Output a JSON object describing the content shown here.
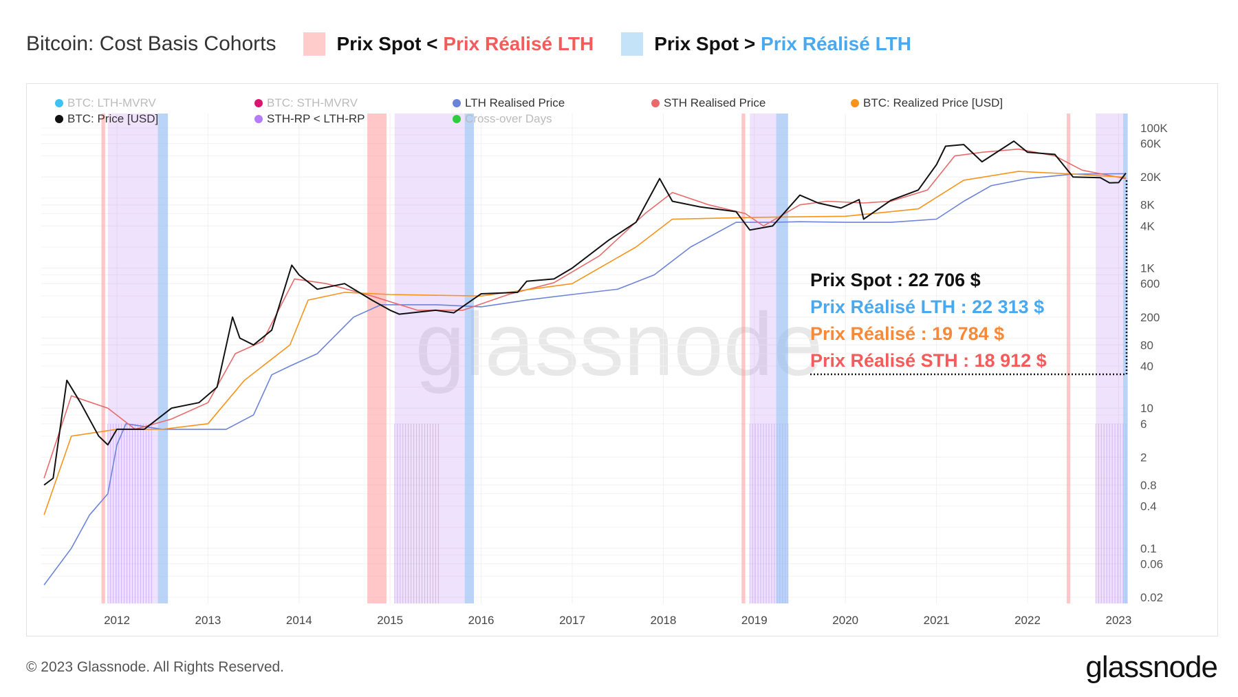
{
  "header": {
    "title": "Bitcoin: Cost Basis Cohorts",
    "legend_red": {
      "prefix": "Prix Spot < ",
      "suffix": "Prix Réalisé LTH",
      "swatch": "#ffcccc",
      "color": "#f45b5b"
    },
    "legend_blue": {
      "prefix": "Prix Spot > ",
      "suffix": "Prix Réalisé LTH",
      "swatch": "#c5e3f8",
      "color": "#4aa8ee"
    }
  },
  "legend": [
    {
      "label": "BTC: LTH-MVRV",
      "color": "#3fc1f5",
      "active": false
    },
    {
      "label": "BTC: STH-MVRV",
      "color": "#d6166f",
      "active": false
    },
    {
      "label": "LTH Realised Price",
      "color": "#6b83d9",
      "active": true
    },
    {
      "label": "STH Realised Price",
      "color": "#e86a6a",
      "active": true
    },
    {
      "label": "BTC: Realized Price [USD]",
      "color": "#f7931a",
      "active": true
    },
    {
      "label": "BTC: Price [USD]",
      "color": "#111111",
      "active": true
    },
    {
      "label": "STH-RP < LTH-RP",
      "color": "#b57cf7",
      "active": true
    },
    {
      "label": "Cross-over Days",
      "color": "#2ecc40",
      "active": false
    }
  ],
  "annotations": {
    "spot": {
      "text": "Prix Spot : 22 706 $",
      "color": "#111111"
    },
    "lth": {
      "text": "Prix Réalisé LTH : 22 313 $",
      "color": "#4aa8ee"
    },
    "rp": {
      "text": "Prix Réalisé : 19 784 $",
      "color": "#f7893a"
    },
    "sth": {
      "text": "Prix Réalisé STH : 18 912 $",
      "color": "#f45b5b"
    }
  },
  "watermark": "glassnode",
  "footer": {
    "copyright": "© 2023 Glassnode. All Rights Reserved.",
    "logo": "glassnode"
  },
  "chart_data": {
    "type": "line",
    "title": "Bitcoin: Cost Basis Cohorts",
    "yscale": "log",
    "ylim": [
      0.015,
      150000
    ],
    "xlim": [
      2011.2,
      2023.12
    ],
    "x_ticks": [
      "2012",
      "2013",
      "2014",
      "2015",
      "2016",
      "2017",
      "2018",
      "2019",
      "2020",
      "2021",
      "2022",
      "2023"
    ],
    "y_ticks": [
      {
        "v": 100000,
        "l": "100K"
      },
      {
        "v": 60000,
        "l": "60K"
      },
      {
        "v": 20000,
        "l": "20K"
      },
      {
        "v": 8000,
        "l": "8K"
      },
      {
        "v": 4000,
        "l": "4K"
      },
      {
        "v": 1000,
        "l": "1K"
      },
      {
        "v": 600,
        "l": "600"
      },
      {
        "v": 200,
        "l": "200"
      },
      {
        "v": 80,
        "l": "80"
      },
      {
        "v": 40,
        "l": "40"
      },
      {
        "v": 10,
        "l": "10"
      },
      {
        "v": 6,
        "l": "6"
      },
      {
        "v": 2,
        "l": "2"
      },
      {
        "v": 0.8,
        "l": "0.8"
      },
      {
        "v": 0.4,
        "l": "0.4"
      },
      {
        "v": 0.1,
        "l": "0.1"
      },
      {
        "v": 0.06,
        "l": "0.06"
      },
      {
        "v": 0.02,
        "l": "0.02"
      }
    ],
    "grid": true,
    "bands": {
      "spot_below_lth": [
        [
          2011.83,
          2011.87
        ],
        [
          2014.75,
          2014.96
        ],
        [
          2018.86,
          2018.9
        ],
        [
          2022.43,
          2022.47
        ]
      ],
      "spot_above_lth": [
        [
          2012.45,
          2012.56
        ],
        [
          2015.82,
          2015.92
        ],
        [
          2019.24,
          2019.37
        ],
        [
          2023.05,
          2023.1
        ]
      ],
      "sth_below_lth": [
        [
          2011.9,
          2012.56
        ],
        [
          2015.05,
          2015.92
        ],
        [
          2018.95,
          2019.37
        ],
        [
          2022.75,
          2023.1
        ]
      ]
    },
    "series": [
      {
        "name": "LTH Realised Price",
        "color": "#6b83d9",
        "points": [
          [
            2011.2,
            0.03
          ],
          [
            2011.5,
            0.1
          ],
          [
            2011.7,
            0.3
          ],
          [
            2011.9,
            0.6
          ],
          [
            2012.0,
            3
          ],
          [
            2012.1,
            6
          ],
          [
            2012.5,
            5
          ],
          [
            2013.0,
            5
          ],
          [
            2013.2,
            5
          ],
          [
            2013.5,
            8
          ],
          [
            2013.7,
            30
          ],
          [
            2013.9,
            40
          ],
          [
            2014.2,
            60
          ],
          [
            2014.6,
            200
          ],
          [
            2014.9,
            300
          ],
          [
            2015.5,
            300
          ],
          [
            2016.0,
            280
          ],
          [
            2016.5,
            350
          ],
          [
            2017.0,
            420
          ],
          [
            2017.5,
            500
          ],
          [
            2017.9,
            800
          ],
          [
            2018.3,
            2000
          ],
          [
            2018.8,
            4500
          ],
          [
            2019.2,
            4500
          ],
          [
            2019.5,
            4600
          ],
          [
            2020.0,
            4500
          ],
          [
            2020.5,
            4500
          ],
          [
            2021.0,
            5000
          ],
          [
            2021.3,
            9000
          ],
          [
            2021.6,
            15000
          ],
          [
            2022.0,
            19000
          ],
          [
            2022.5,
            22000
          ],
          [
            2023.08,
            22313
          ]
        ]
      },
      {
        "name": "STH Realised Price",
        "color": "#e86a6a",
        "points": [
          [
            2011.2,
            1
          ],
          [
            2011.5,
            15
          ],
          [
            2011.9,
            10
          ],
          [
            2012.2,
            5
          ],
          [
            2012.6,
            7
          ],
          [
            2013.0,
            12
          ],
          [
            2013.3,
            60
          ],
          [
            2013.6,
            90
          ],
          [
            2013.95,
            700
          ],
          [
            2014.3,
            600
          ],
          [
            2014.8,
            400
          ],
          [
            2015.3,
            250
          ],
          [
            2015.8,
            250
          ],
          [
            2016.3,
            420
          ],
          [
            2016.8,
            620
          ],
          [
            2017.3,
            1500
          ],
          [
            2017.8,
            6000
          ],
          [
            2018.1,
            12000
          ],
          [
            2018.5,
            8000
          ],
          [
            2018.9,
            6000
          ],
          [
            2019.1,
            4000
          ],
          [
            2019.5,
            8000
          ],
          [
            2019.8,
            9000
          ],
          [
            2020.2,
            8500
          ],
          [
            2020.5,
            9000
          ],
          [
            2020.9,
            13000
          ],
          [
            2021.2,
            40000
          ],
          [
            2021.5,
            45000
          ],
          [
            2021.9,
            50000
          ],
          [
            2022.3,
            40000
          ],
          [
            2022.6,
            25000
          ],
          [
            2023.08,
            18912
          ]
        ]
      },
      {
        "name": "BTC: Realized Price [USD]",
        "color": "#f7931a",
        "points": [
          [
            2011.2,
            0.3
          ],
          [
            2011.5,
            4
          ],
          [
            2012.0,
            5
          ],
          [
            2012.5,
            5
          ],
          [
            2013.0,
            6
          ],
          [
            2013.4,
            25
          ],
          [
            2013.9,
            80
          ],
          [
            2014.1,
            350
          ],
          [
            2014.5,
            450
          ],
          [
            2015.0,
            420
          ],
          [
            2016.0,
            400
          ],
          [
            2017.0,
            600
          ],
          [
            2017.7,
            2000
          ],
          [
            2018.1,
            5000
          ],
          [
            2019.0,
            5300
          ],
          [
            2020.0,
            5500
          ],
          [
            2020.8,
            7000
          ],
          [
            2021.3,
            18000
          ],
          [
            2021.9,
            24000
          ],
          [
            2022.5,
            22000
          ],
          [
            2023.08,
            19784
          ]
        ]
      },
      {
        "name": "BTC: Price [USD]",
        "color": "#111111",
        "points": [
          [
            2011.2,
            0.8
          ],
          [
            2011.3,
            1
          ],
          [
            2011.45,
            25
          ],
          [
            2011.6,
            12
          ],
          [
            2011.8,
            4
          ],
          [
            2011.9,
            3
          ],
          [
            2012.0,
            5
          ],
          [
            2012.3,
            5
          ],
          [
            2012.6,
            10
          ],
          [
            2012.9,
            12
          ],
          [
            2013.1,
            20
          ],
          [
            2013.27,
            200
          ],
          [
            2013.35,
            100
          ],
          [
            2013.5,
            80
          ],
          [
            2013.7,
            130
          ],
          [
            2013.92,
            1100
          ],
          [
            2014.0,
            800
          ],
          [
            2014.2,
            500
          ],
          [
            2014.5,
            600
          ],
          [
            2014.8,
            350
          ],
          [
            2015.0,
            250
          ],
          [
            2015.1,
            220
          ],
          [
            2015.5,
            250
          ],
          [
            2015.7,
            230
          ],
          [
            2015.9,
            350
          ],
          [
            2016.0,
            430
          ],
          [
            2016.4,
            450
          ],
          [
            2016.5,
            650
          ],
          [
            2016.8,
            700
          ],
          [
            2017.0,
            1000
          ],
          [
            2017.4,
            2500
          ],
          [
            2017.7,
            4500
          ],
          [
            2017.96,
            19000
          ],
          [
            2018.1,
            9000
          ],
          [
            2018.4,
            7500
          ],
          [
            2018.8,
            6400
          ],
          [
            2018.95,
            3500
          ],
          [
            2019.2,
            4000
          ],
          [
            2019.5,
            11000
          ],
          [
            2019.7,
            8500
          ],
          [
            2019.95,
            7200
          ],
          [
            2020.15,
            9500
          ],
          [
            2020.2,
            5000
          ],
          [
            2020.5,
            9300
          ],
          [
            2020.8,
            13000
          ],
          [
            2021.0,
            30000
          ],
          [
            2021.1,
            55000
          ],
          [
            2021.3,
            58000
          ],
          [
            2021.5,
            33000
          ],
          [
            2021.85,
            65000
          ],
          [
            2022.0,
            45000
          ],
          [
            2022.3,
            42000
          ],
          [
            2022.5,
            20000
          ],
          [
            2022.8,
            19500
          ],
          [
            2022.9,
            16500
          ],
          [
            2023.0,
            16600
          ],
          [
            2023.08,
            22706
          ]
        ]
      }
    ]
  }
}
